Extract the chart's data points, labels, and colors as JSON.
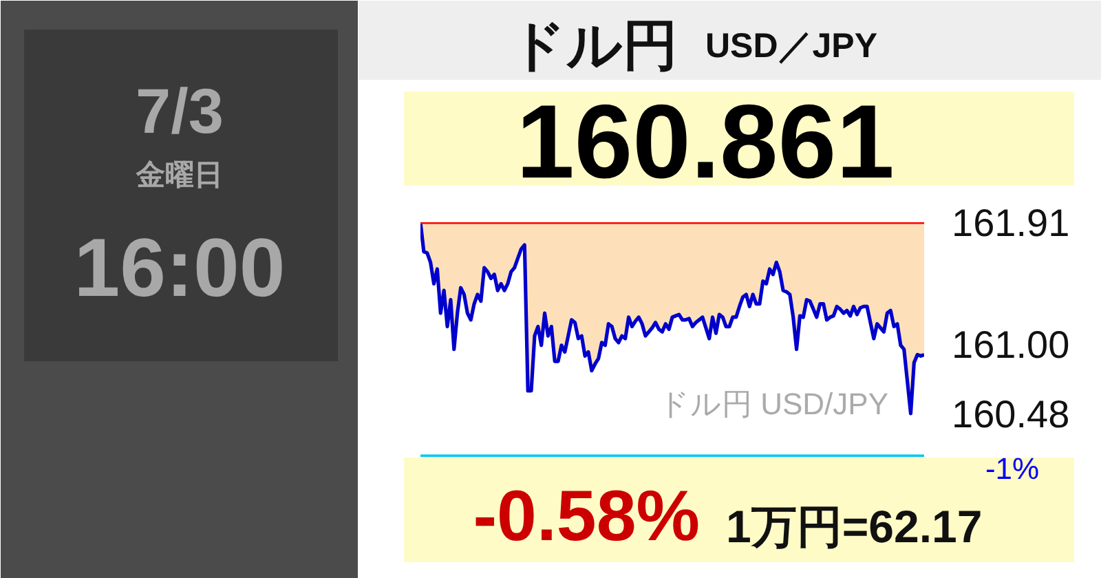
{
  "chart_data": {
    "type": "line",
    "title": "ドル円 USD／JPY",
    "subtitle": "160.861",
    "annotations": [
      "7/3",
      "金曜日",
      "16:00",
      "ドル円 USD/JPY",
      "-0.58%",
      "1万円=62.17",
      "-1%"
    ],
    "categories": [
      null,
      null,
      null,
      null,
      null,
      null,
      null,
      null,
      null,
      null,
      null,
      null,
      null,
      null,
      null,
      null,
      null,
      null,
      null,
      null,
      null,
      null,
      null,
      null,
      null,
      null,
      null,
      null,
      null,
      null,
      null,
      null,
      null,
      null,
      null,
      null,
      null,
      null,
      null,
      null,
      null,
      null,
      null,
      null,
      null,
      null,
      null,
      null,
      null,
      null,
      null,
      null,
      null,
      null,
      null,
      null,
      null,
      null,
      null,
      null,
      null,
      null,
      null,
      null,
      null,
      null,
      null,
      null,
      null,
      null,
      null,
      null,
      null,
      null,
      null,
      null,
      null,
      null,
      null,
      null,
      null,
      null,
      null,
      null,
      null,
      null,
      null,
      null,
      null,
      null,
      null,
      null,
      null,
      null,
      null,
      null,
      null,
      null,
      null,
      null,
      null,
      null,
      null,
      null,
      null,
      null,
      null,
      null,
      null,
      null,
      null,
      null,
      null,
      null,
      null,
      null,
      null,
      null,
      null,
      null,
      null,
      null,
      null,
      null,
      null,
      null,
      null,
      null,
      null,
      null,
      null,
      null,
      null,
      null,
      null,
      null,
      null,
      null,
      null,
      null,
      null,
      null,
      null,
      null,
      null,
      null,
      null,
      null,
      null,
      null,
      null
    ],
    "series": [
      {
        "color": "#0000cc",
        "values": [
          161.91,
          161.69,
          161.68,
          161.61,
          161.45,
          161.56,
          161.23,
          161.4,
          161.13,
          161.33,
          160.96,
          161.23,
          161.42,
          161.37,
          161.23,
          161.18,
          161.3,
          161.37,
          161.32,
          161.57,
          161.54,
          161.49,
          161.52,
          161.4,
          161.45,
          161.4,
          161.45,
          161.54,
          161.57,
          161.64,
          161.71,
          161.74,
          160.65,
          160.65,
          161.06,
          161.13,
          160.99,
          161.23,
          161.06,
          161.13,
          160.87,
          160.87,
          160.99,
          160.94,
          161.06,
          161.18,
          161.16,
          161.04,
          161.06,
          160.91,
          160.94,
          160.8,
          160.85,
          160.89,
          161.01,
          160.99,
          161.15,
          161.13,
          161.04,
          161.01,
          161.06,
          161.04,
          161.2,
          161.13,
          161.17,
          161.2,
          161.15,
          161.06,
          161.09,
          161.12,
          161.16,
          161.11,
          161.09,
          161.15,
          161.11,
          161.2,
          161.21,
          161.22,
          161.18,
          161.18,
          161.19,
          161.13,
          161.16,
          161.18,
          161.2,
          161.12,
          161.04,
          161.2,
          161.08,
          161.22,
          161.2,
          161.13,
          161.13,
          161.2,
          161.2,
          161.28,
          161.35,
          161.37,
          161.28,
          161.37,
          161.3,
          161.3,
          161.47,
          161.45,
          161.56,
          161.52,
          161.61,
          161.54,
          161.4,
          161.39,
          161.37,
          161.2,
          160.96,
          161.21,
          161.2,
          161.33,
          161.32,
          161.26,
          161.2,
          161.3,
          161.3,
          161.18,
          161.2,
          161.21,
          161.28,
          161.26,
          161.23,
          161.25,
          161.21,
          161.28,
          161.22,
          161.27,
          161.28,
          161.28,
          161.16,
          161.04,
          161.15,
          161.12,
          161.09,
          161.23,
          161.25,
          161.13,
          161.15,
          160.99,
          160.96,
          160.72,
          160.48,
          160.86,
          160.92,
          160.91,
          160.92
        ],
        "lower": [
          161.91,
          161.69,
          161.68,
          161.61,
          161.45,
          161.56,
          161.23,
          161.4,
          161.13,
          161.33,
          160.96,
          161.23,
          161.42,
          161.37,
          161.23,
          161.18,
          161.3,
          161.37,
          161.32,
          161.57,
          161.54,
          161.49,
          161.52,
          161.4,
          161.45,
          161.4,
          161.45,
          161.54,
          161.57,
          161.64,
          161.71,
          161.74,
          160.65,
          160.65,
          161.06,
          161.13,
          160.99,
          161.23,
          161.06,
          161.13,
          160.87,
          160.87,
          160.99,
          160.94,
          161.06,
          161.18,
          161.16,
          161.04,
          161.06,
          160.91,
          160.94,
          160.8,
          160.85,
          160.89,
          161.01,
          160.99,
          161.15,
          161.13,
          161.04,
          161.01,
          161.06,
          161.04,
          161.2,
          161.13,
          161.17,
          161.2,
          161.15,
          161.06,
          161.09,
          161.12,
          161.16,
          161.11,
          161.09,
          161.15,
          161.11,
          161.2,
          161.21,
          161.22,
          161.18,
          161.18,
          161.19,
          161.13,
          161.16,
          161.18,
          161.2,
          161.12,
          161.04,
          161.2,
          161.08,
          161.22,
          161.2,
          161.13,
          161.13,
          161.2,
          161.2,
          161.28,
          161.35,
          161.37,
          161.28,
          161.37,
          161.3,
          161.3,
          161.47,
          161.45,
          161.56,
          161.52,
          161.61,
          161.54,
          161.4,
          161.39,
          161.37,
          161.2,
          160.96,
          161.21,
          161.2,
          161.33,
          161.32,
          161.26,
          161.2,
          161.3,
          161.3,
          161.18,
          161.2,
          161.21,
          161.28,
          161.26,
          161.23,
          161.25,
          161.21,
          161.28,
          161.22,
          161.27,
          161.28,
          161.28,
          161.16,
          161.04,
          161.15,
          161.12,
          161.09,
          161.23,
          161.25,
          161.13,
          161.15,
          160.99,
          160.96,
          160.72,
          160.48,
          160.86,
          160.92,
          160.91,
          160.92
        ],
        "upper": [
          161.91,
          161.91,
          161.91,
          161.91,
          161.91,
          161.91,
          161.91,
          161.91,
          161.91,
          161.91,
          161.91,
          161.91,
          161.91,
          161.91,
          161.91,
          161.91,
          161.91,
          161.91,
          161.91,
          161.91,
          161.91,
          161.91,
          161.91,
          161.91,
          161.91,
          161.91,
          161.91,
          161.91,
          161.91,
          161.91,
          161.91,
          161.91,
          161.91,
          161.91,
          161.91,
          161.91,
          161.91,
          161.91,
          161.91,
          161.91,
          161.91,
          161.91,
          161.91,
          161.91,
          161.91,
          161.91,
          161.91,
          161.91,
          161.91,
          161.91,
          161.91,
          161.91,
          161.91,
          161.91,
          161.91,
          161.91,
          161.91,
          161.91,
          161.91,
          161.91,
          161.91,
          161.91,
          161.91,
          161.91,
          161.91,
          161.91,
          161.91,
          161.91,
          161.91,
          161.91,
          161.91,
          161.91,
          161.91,
          161.91,
          161.91,
          161.91,
          161.91,
          161.91,
          161.91,
          161.91,
          161.91,
          161.91,
          161.91,
          161.91,
          161.91,
          161.91,
          161.91,
          161.91,
          161.91,
          161.91,
          161.91,
          161.91,
          161.91,
          161.91,
          161.91,
          161.91,
          161.91,
          161.91,
          161.91,
          161.91,
          161.91,
          161.91,
          161.91,
          161.91,
          161.91,
          161.91,
          161.91,
          161.91,
          161.91,
          161.91,
          161.91,
          161.91,
          161.91,
          161.91,
          161.91,
          161.91,
          161.91,
          161.91,
          161.91,
          161.91,
          161.91,
          161.91,
          161.91,
          161.91,
          161.91,
          161.91,
          161.91,
          161.91,
          161.91,
          161.91,
          161.91,
          161.91,
          161.91,
          161.91,
          161.91,
          161.91,
          161.91,
          161.91,
          161.91,
          161.91,
          161.91,
          161.91,
          161.91,
          161.91,
          161.91,
          161.91,
          161.91,
          161.91,
          161.91,
          161.91,
          161.91
        ]
      }
    ],
    "ylim": [
      160.15,
      161.91
    ],
    "yticks": [
      160.48,
      {
        "value": 161.0,
        "label": "161.00"
      },
      161.91
    ],
    "ref_lines": [
      {
        "axis": "y",
        "value": 161.91,
        "color": "#ff0000"
      },
      {
        "axis": "y",
        "value": 160.16,
        "color": "#00c8f0"
      }
    ],
    "tick_labels": "y"
  }
}
